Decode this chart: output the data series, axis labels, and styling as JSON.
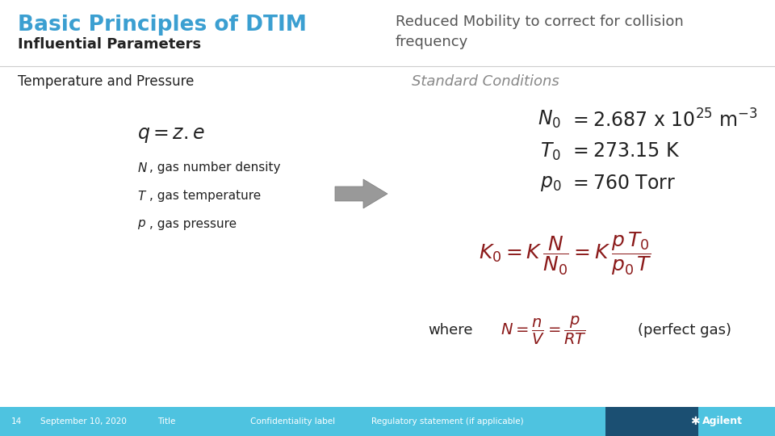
{
  "title": "Basic Principles of DTIM",
  "subtitle": "Influential Parameters",
  "title_color": "#3B9FD1",
  "subtitle_color": "#1a1a1a",
  "right_header": "Reduced Mobility to correct for collision\nfrequency",
  "right_header_color": "#555555",
  "left_section_title": "Temperature and Pressure",
  "left_section_title_color": "#1a1a1a",
  "right_section_title": "Standard Conditions",
  "right_section_title_color": "#888888",
  "formula_color": "#8B1A1A",
  "text_color": "#555555",
  "dark_text": "#222222",
  "footer_bar_light": "#4EC3E0",
  "footer_bar_dark": "#1B4F72",
  "footer_bg": "#3AB8D8",
  "bg_color": "#FFFFFF",
  "arrow_color": "#888888",
  "footer_left_num": "14",
  "footer_date": "September 10, 2020",
  "footer_title": "Title",
  "footer_conf": "Confidentiality label",
  "footer_regulatory": "Regulatory statement (if applicable)"
}
